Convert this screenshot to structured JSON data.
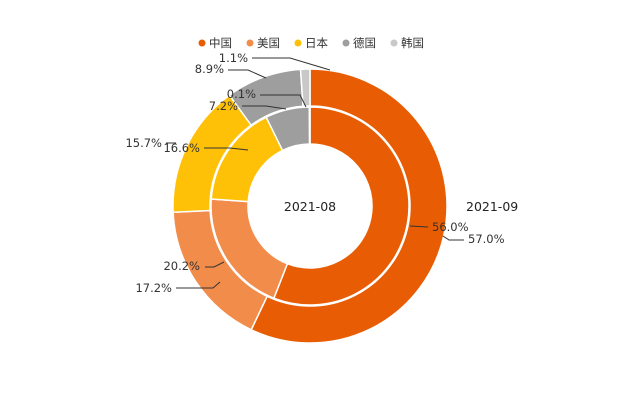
{
  "chart_data": {
    "type": "pie",
    "subtype": "nested-donut",
    "legend_position": "top-center",
    "categories": [
      "中国",
      "美国",
      "日本",
      "德国",
      "韩国"
    ],
    "colors": {
      "中国": "#e85d04",
      "美国": "#f28c4b",
      "日本": "#ffc107",
      "德国": "#9e9e9e",
      "韩国": "#c8c8c8"
    },
    "series": [
      {
        "name": "2021-08",
        "ring": "inner",
        "values": [
          56.0,
          20.2,
          16.6,
          7.2,
          0.1
        ],
        "labels": [
          "56.0%",
          "20.2%",
          "16.6%",
          "7.2%",
          "0.1%"
        ]
      },
      {
        "name": "2021-09",
        "ring": "outer",
        "values": [
          57.0,
          17.2,
          15.7,
          8.9,
          1.1
        ],
        "labels": [
          "57.0%",
          "17.2%",
          "15.7%",
          "8.9%",
          "1.1%"
        ]
      }
    ]
  }
}
